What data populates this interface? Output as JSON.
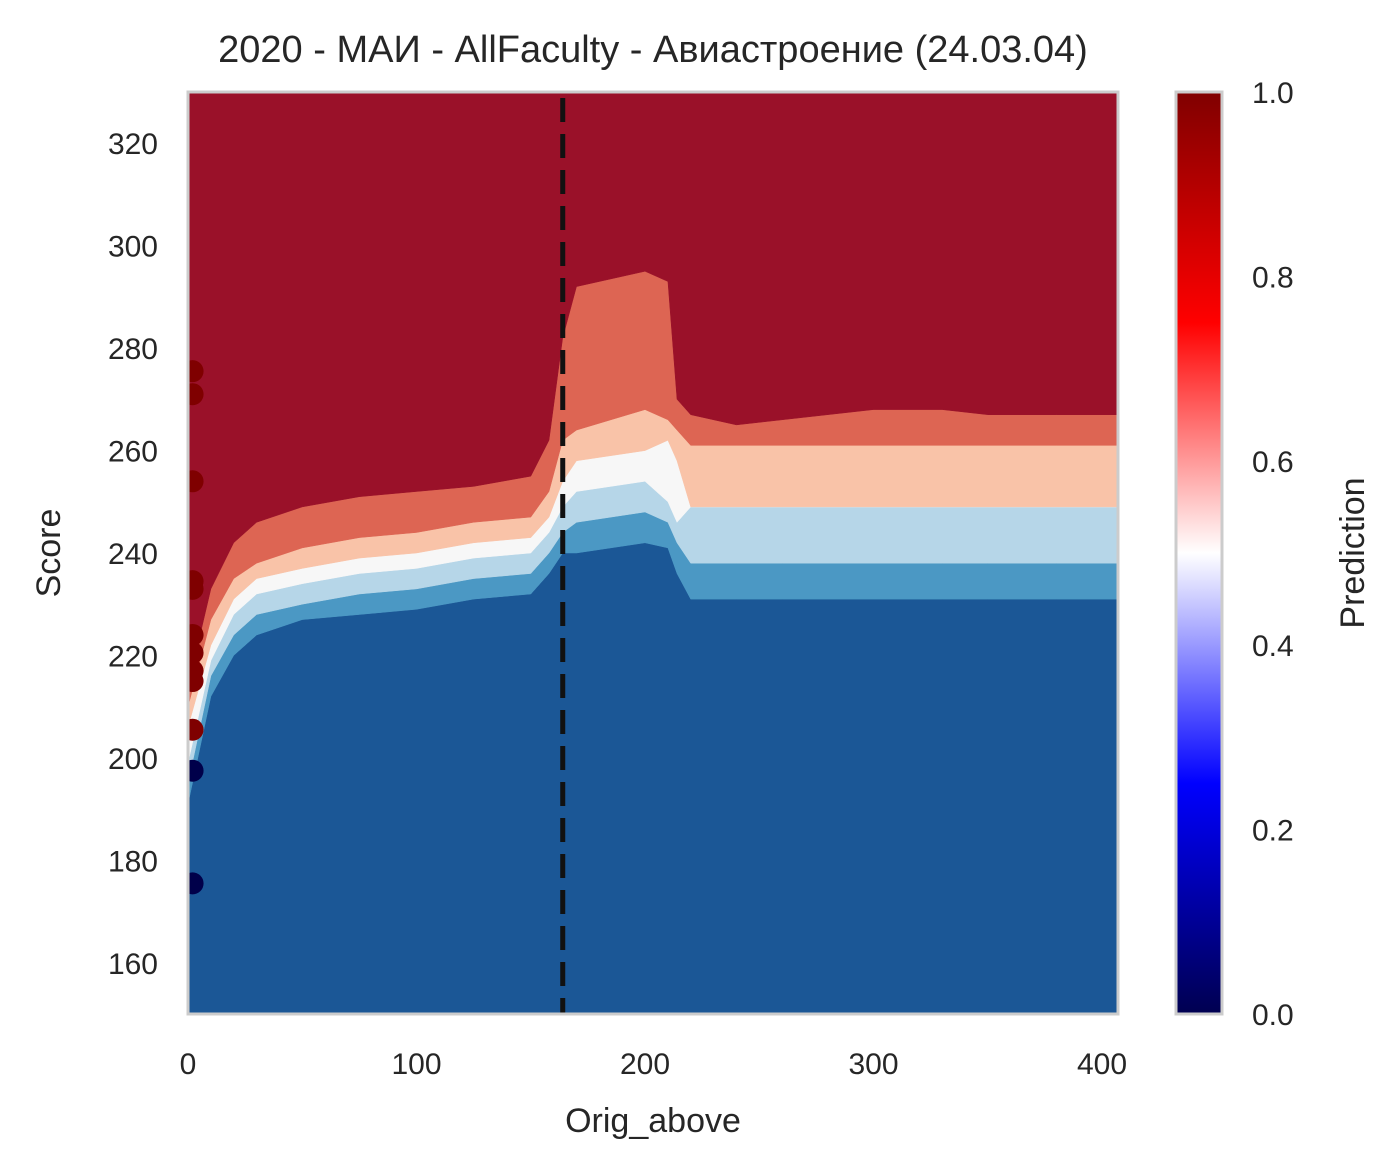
{
  "chart_data": {
    "type": "contour",
    "title": "2020 - МАИ - AllFaculty - Авиастроение (24.03.04)",
    "xlabel": "Orig_above",
    "ylabel": "Score",
    "xlim": [
      0,
      407
    ],
    "ylim": [
      150,
      330
    ],
    "xticks": [
      0,
      100,
      200,
      300,
      400
    ],
    "yticks": [
      160,
      180,
      200,
      220,
      240,
      260,
      280,
      300,
      320
    ],
    "grid": false,
    "threshold_line": {
      "x": 164,
      "style": "dashed",
      "color": "#111111"
    },
    "contour_levels": [
      {
        "level": "0.0-0.2",
        "color": "#1b5796"
      },
      {
        "level": "0.2-0.3",
        "color": "#4b98c4"
      },
      {
        "level": "0.3-0.4",
        "color": "#b6d6e8"
      },
      {
        "level": "0.4-0.5",
        "color": "#f7f7f7"
      },
      {
        "level": "0.5-0.6",
        "color": "#f9c3a8"
      },
      {
        "level": "0.6-0.8",
        "color": "#dd6553"
      },
      {
        "level": "0.8-1.0",
        "color": "#9a1129"
      }
    ],
    "boundaries": {
      "x": [
        0,
        10,
        20,
        30,
        50,
        75,
        100,
        125,
        150,
        158,
        164,
        170,
        200,
        210,
        214,
        220,
        240,
        260,
        300,
        330,
        350,
        380,
        407
      ],
      "b1": [
        191,
        212,
        220,
        224,
        227,
        228,
        229,
        231,
        232,
        236,
        240,
        240,
        242,
        241,
        236,
        231,
        231,
        231,
        231,
        231,
        231,
        231,
        231
      ],
      "b2": [
        195,
        216,
        224,
        228,
        230,
        232,
        233,
        235,
        236,
        240,
        244,
        246,
        248,
        246,
        242,
        238,
        238,
        238,
        238,
        238,
        238,
        238,
        238
      ],
      "b3": [
        199,
        219,
        228,
        232,
        234,
        236,
        237,
        239,
        240,
        244,
        249,
        252,
        254,
        250,
        246,
        249,
        249,
        249,
        249,
        249,
        249,
        249,
        249
      ],
      "b4": [
        206,
        222,
        231,
        235,
        237,
        239,
        240,
        242,
        243,
        247,
        254,
        258,
        260,
        262,
        258,
        249,
        249,
        249,
        249,
        249,
        249,
        249,
        249
      ],
      "b5": [
        210,
        227,
        235,
        238,
        241,
        243,
        244,
        246,
        247,
        252,
        262,
        264,
        268,
        266,
        264,
        261,
        261,
        261,
        261,
        261,
        261,
        261,
        261
      ],
      "b6": [
        214,
        233,
        242,
        246,
        249,
        251,
        252,
        253,
        255,
        262,
        282,
        292,
        295,
        293,
        270,
        267,
        265,
        266,
        268,
        268,
        267,
        267,
        267
      ]
    },
    "points": [
      {
        "x": 2,
        "y": 275.5,
        "value": 1.0
      },
      {
        "x": 2,
        "y": 271,
        "value": 1.0
      },
      {
        "x": 2,
        "y": 254,
        "value": 1.0
      },
      {
        "x": 2,
        "y": 234.5,
        "value": 1.0
      },
      {
        "x": 2,
        "y": 233,
        "value": 1.0
      },
      {
        "x": 2,
        "y": 224,
        "value": 1.0
      },
      {
        "x": 2,
        "y": 220.5,
        "value": 1.0
      },
      {
        "x": 2,
        "y": 217,
        "value": 1.0
      },
      {
        "x": 2,
        "y": 215,
        "value": 1.0
      },
      {
        "x": 2,
        "y": 205.5,
        "value": 1.0
      },
      {
        "x": 2,
        "y": 197.5,
        "value": 0.0
      },
      {
        "x": 2,
        "y": 175.5,
        "value": 0.0
      }
    ],
    "point_colors": {
      "1": "#7f0000",
      "0": "#00004a"
    },
    "colorbar": {
      "label": "Prediction",
      "range": [
        0,
        1
      ],
      "ticks": [
        "0.0",
        "0.2",
        "0.4",
        "0.6",
        "0.8",
        "1.0"
      ],
      "colormap": "seismic",
      "stops": [
        "#000050",
        "#0000ff",
        "#ffffff",
        "#ff0000",
        "#800000"
      ]
    }
  }
}
